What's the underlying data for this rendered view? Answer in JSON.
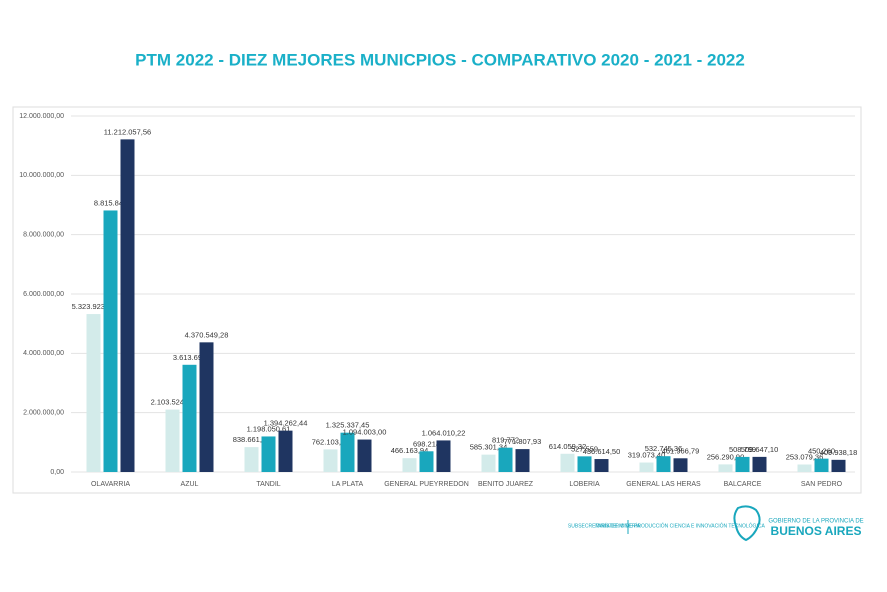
{
  "chart_data": {
    "type": "bar",
    "title": "PTM 2022 - DIEZ MEJORES MUNICPIOS - COMPARATIVO 2020 - 2021 - 2022",
    "categories": [
      "OLAVARRIA",
      "AZUL",
      "TANDIL",
      "LA PLATA",
      "GENERAL PUEYRREDON",
      "BENITO JUAREZ",
      "LOBERIA",
      "GENERAL LAS HERAS",
      "BALCARCE",
      "SAN PEDRO"
    ],
    "series": [
      {
        "color": "#d3ebea",
        "values": [
          5323923.3,
          2103524.3,
          838661.5,
          762103.5,
          466163.94,
          585301.34,
          614059.32,
          319073.4,
          256290.9,
          253079.36
        ],
        "value_labels": [
          "5.323.923,30",
          "2.103.524,30",
          "838.661,50",
          "762.103,50",
          "466.163,94",
          "585.301,34",
          "614.059,32",
          "319.073,40",
          "256.290,90",
          "253.079,36"
        ]
      },
      {
        "color": "#19a7bd",
        "values": [
          8815848,
          3613690,
          1198050.61,
          1325337.45,
          698214,
          819772,
          527559,
          532745.36,
          508799,
          450260
        ],
        "value_labels": [
          "8.815.848",
          "3.613.690",
          "1.198.050,61",
          "1.325.337,45",
          "698.214",
          "819.772",
          "527.559",
          "532.745,36",
          "508.799",
          "450.260"
        ]
      },
      {
        "color": "#1f3561",
        "values": [
          11212057.56,
          4370549.28,
          1394262.44,
          1094003,
          1064010.22,
          771807.93,
          436614.5,
          461966.79,
          509647.1,
          409938.18
        ],
        "value_labels": [
          "11.212.057,56",
          "4.370.549,28",
          "1.394.262,44",
          "1.094.003,00",
          "1.064.010,22",
          "771.807,93",
          "436.614,50",
          "461.966,79",
          "509.647,10",
          "409.938,18"
        ]
      }
    ],
    "ylim": [
      0,
      12000000
    ],
    "yticks": [
      {
        "value": 0,
        "label": "0,00"
      },
      {
        "value": 2000000,
        "label": "2.000.000,00"
      },
      {
        "value": 4000000,
        "label": "4.000.000,00"
      },
      {
        "value": 6000000,
        "label": "6.000.000,00"
      },
      {
        "value": 8000000,
        "label": "8.000.000,00"
      },
      {
        "value": 10000000,
        "label": "10.000.000,00"
      },
      {
        "value": 12000000,
        "label": "12.000.000,00"
      }
    ],
    "grid": true
  },
  "footer": {
    "mineria": "SUBSECRETARÍA DE MINERÍA",
    "ministerio": "MINISTERIO DE PRODUCCIÓN CIENCIA E INNOVACIÓN TECNOLÓGICA",
    "gobierno": "GOBIERNO DE LA PROVINCIA DE",
    "provincia": "BUENOS AIRES"
  }
}
